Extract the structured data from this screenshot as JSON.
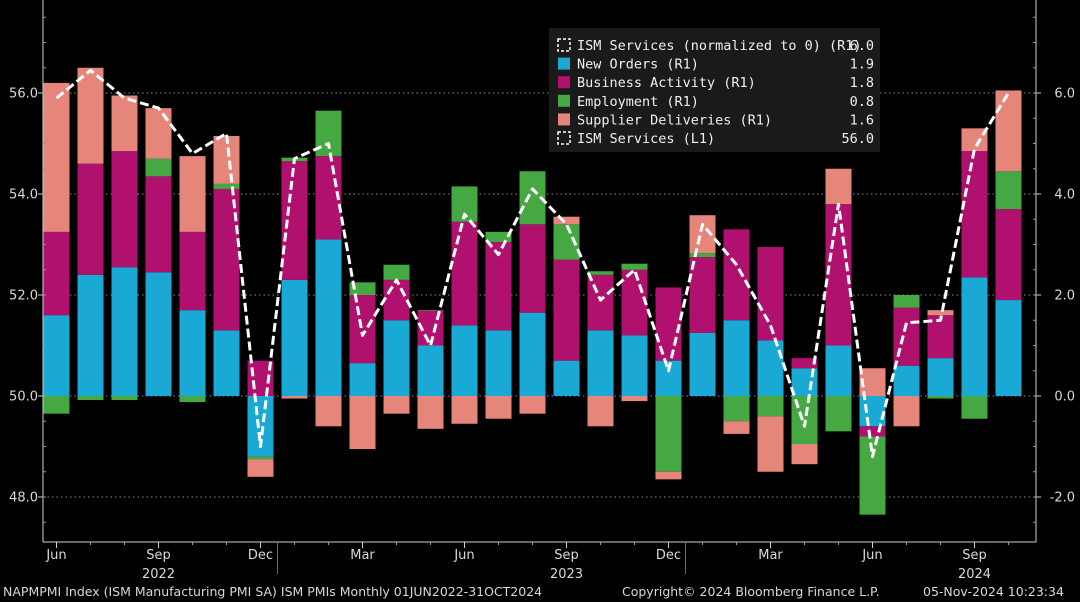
{
  "chart_data": {
    "type": "bar",
    "subtype": "stacked bar + line",
    "x": [
      "2022-06",
      "2022-07",
      "2022-08",
      "2022-09",
      "2022-10",
      "2022-11",
      "2022-12",
      "2023-01",
      "2023-02",
      "2023-03",
      "2023-04",
      "2023-05",
      "2023-06",
      "2023-07",
      "2023-08",
      "2023-09",
      "2023-10",
      "2023-11",
      "2023-12",
      "2024-01",
      "2024-02",
      "2024-03",
      "2024-04",
      "2024-05",
      "2024-06",
      "2024-07",
      "2024-08",
      "2024-09",
      "2024-10"
    ],
    "x_tick_labels": [
      "Jun",
      "Sep",
      "Dec",
      "Mar",
      "Jun",
      "Sep",
      "Dec",
      "Mar",
      "Jun",
      "Sep"
    ],
    "x_year_labels": [
      "2022",
      "2023",
      "2024"
    ],
    "left_axis": {
      "range": [
        47.3,
        57.6
      ],
      "ticks": [
        "48.0",
        "50.0",
        "52.0",
        "54.0",
        "56.0"
      ]
    },
    "right_axis": {
      "range": [
        -2.7,
        7.6
      ],
      "ticks": [
        "-2.0",
        "0.0",
        "2.0",
        "4.0",
        "6.0"
      ]
    },
    "grid": true,
    "legend_placement": "top-right",
    "series": [
      {
        "name": "New Orders (R1)",
        "axis": "right",
        "color": "#19a9d4",
        "last_value": "1.9",
        "values": [
          1.6,
          2.4,
          2.55,
          2.45,
          1.7,
          1.3,
          -1.2,
          2.3,
          3.1,
          0.65,
          1.5,
          1.0,
          1.4,
          1.3,
          1.65,
          0.7,
          1.3,
          1.2,
          0.7,
          1.25,
          1.5,
          1.1,
          0.55,
          1.0,
          -0.6,
          0.6,
          0.75,
          2.35,
          1.9
        ]
      },
      {
        "name": "Business Activity (R1)",
        "axis": "right",
        "color": "#b0116f",
        "last_value": "1.8",
        "values": [
          1.65,
          2.2,
          2.3,
          1.9,
          1.55,
          2.8,
          0.7,
          2.35,
          1.65,
          1.35,
          0.8,
          0.7,
          2.05,
          1.75,
          1.75,
          2.0,
          1.1,
          1.3,
          1.45,
          1.5,
          1.8,
          1.85,
          0.2,
          2.8,
          -0.2,
          1.15,
          0.85,
          2.5,
          1.8
        ]
      },
      {
        "name": "Employment (R1)",
        "axis": "right",
        "color": "#45a842",
        "last_value": "0.8",
        "values": [
          -0.35,
          -0.08,
          -0.08,
          0.35,
          -0.12,
          0.1,
          -0.05,
          0.07,
          0.9,
          0.25,
          0.3,
          0.0,
          0.7,
          0.2,
          1.05,
          0.7,
          0.07,
          0.12,
          -1.5,
          0.08,
          -0.5,
          -0.4,
          -0.95,
          -0.7,
          -1.55,
          0.25,
          -0.05,
          -0.45,
          0.75
        ]
      },
      {
        "name": "Supplier Deliveries (R1)",
        "axis": "right",
        "color": "#e6867b",
        "last_value": "1.6",
        "values": [
          2.95,
          1.9,
          1.1,
          1.0,
          1.5,
          0.95,
          -0.35,
          -0.05,
          -0.6,
          -1.05,
          -0.35,
          -0.65,
          -0.55,
          -0.45,
          -0.35,
          0.15,
          -0.6,
          -0.1,
          -0.15,
          0.75,
          -0.25,
          -1.1,
          -0.4,
          0.7,
          0.55,
          -0.6,
          0.1,
          0.45,
          1.6
        ]
      },
      {
        "name": "ISM Services (normalized to 0) (R1)",
        "axis": "right",
        "style": "dashed",
        "color": "#ffffff",
        "last_value": "6.0",
        "values": [
          5.9,
          6.45,
          5.9,
          5.7,
          4.8,
          5.2,
          -1.0,
          4.7,
          5.0,
          1.2,
          2.3,
          1.0,
          3.6,
          2.8,
          4.1,
          3.4,
          1.9,
          2.5,
          0.5,
          3.4,
          2.6,
          1.4,
          -0.6,
          3.8,
          -1.2,
          1.45,
          1.5,
          4.9,
          6.0
        ]
      },
      {
        "name": "ISM Services (L1)",
        "axis": "left",
        "style": "dashed",
        "color": "#ffffff",
        "last_value": "56.0",
        "values": [
          55.9,
          56.45,
          55.9,
          55.7,
          54.8,
          55.2,
          49.0,
          54.7,
          55.0,
          51.2,
          52.3,
          51.0,
          53.6,
          52.8,
          54.1,
          53.4,
          51.9,
          52.5,
          50.5,
          53.4,
          52.6,
          51.4,
          49.4,
          53.8,
          48.8,
          51.45,
          51.5,
          54.9,
          56.0
        ]
      }
    ]
  },
  "legend": [
    {
      "label": "ISM Services (normalized to 0) (R1)",
      "value": "6.0",
      "color": "#ffffff",
      "style": "dashed"
    },
    {
      "label": "New Orders (R1)",
      "value": "1.9",
      "color": "#19a9d4",
      "style": "solid"
    },
    {
      "label": "Business Activity (R1)",
      "value": "1.8",
      "color": "#b0116f",
      "style": "solid"
    },
    {
      "label": "Employment (R1)",
      "value": "0.8",
      "color": "#45a842",
      "style": "solid"
    },
    {
      "label": "Supplier Deliveries (R1)",
      "value": "1.6",
      "color": "#e6867b",
      "style": "solid"
    },
    {
      "label": "ISM Services (L1)",
      "value": "56.0",
      "color": "#ffffff",
      "style": "dashed"
    }
  ],
  "footer": {
    "description": "NAPMPMI Index (ISM Manufacturing PMI SA) ISM PMIs  Monthly 01JUN2022-31OCT2024",
    "copyright": "Copyright© 2024 Bloomberg Finance L.P.",
    "timestamp": "05-Nov-2024 10:23:34"
  }
}
